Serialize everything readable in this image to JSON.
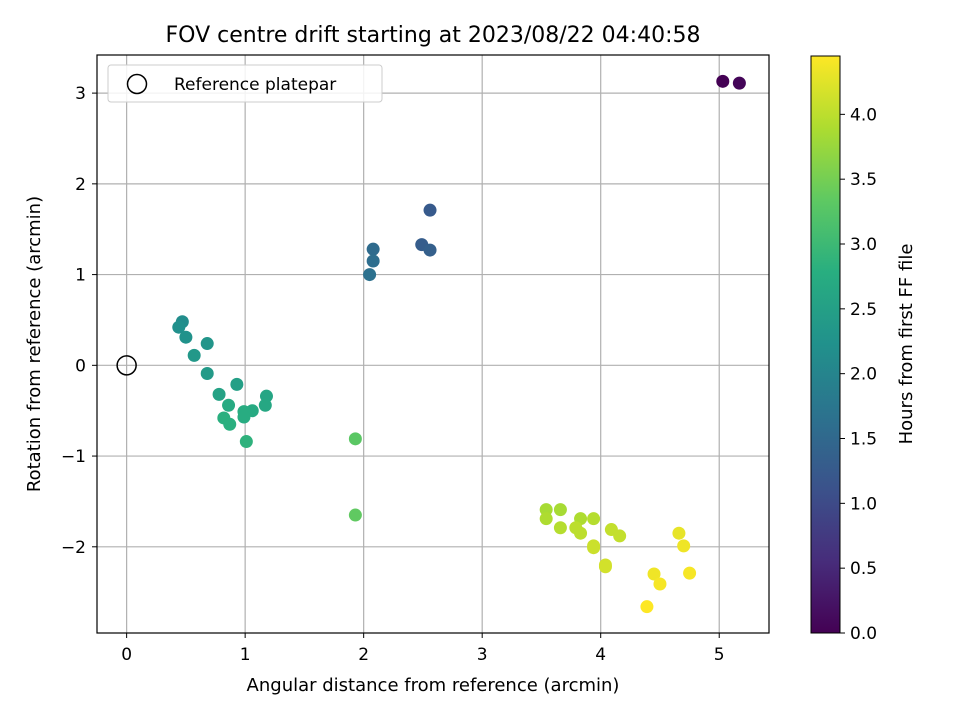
{
  "chart_data": {
    "type": "scatter",
    "title": "FOV centre drift starting at 2023/08/22 04:40:58",
    "xlabel": "Angular distance from reference (arcmin)",
    "ylabel": "Rotation from reference (arcmin)",
    "xlim": [
      -0.25,
      5.42
    ],
    "ylim": [
      -2.95,
      3.42
    ],
    "xticks": [
      0,
      1,
      2,
      3,
      4,
      5
    ],
    "xtick_labels": [
      "0",
      "1",
      "2",
      "3",
      "4",
      "5"
    ],
    "yticks": [
      -2,
      -1,
      0,
      1,
      2,
      3
    ],
    "ytick_labels": [
      "−2",
      "−1",
      "0",
      "1",
      "2",
      "3"
    ],
    "grid": true,
    "legend": {
      "placement": "top-left",
      "entries": [
        "Reference platepar"
      ]
    },
    "reference": {
      "x": 0,
      "y": 0,
      "label": "Reference platepar",
      "marker": "open-circle"
    },
    "colorbar": {
      "label": "Hours from first FF file",
      "min": 0.0,
      "max": 4.45,
      "ticks": [
        0.0,
        0.5,
        1.0,
        1.5,
        2.0,
        2.5,
        3.0,
        3.5,
        4.0
      ],
      "tick_labels": [
        "0.0",
        "0.5",
        "1.0",
        "1.5",
        "2.0",
        "2.5",
        "3.0",
        "3.5",
        "4.0"
      ],
      "colormap": "viridis"
    },
    "points": [
      {
        "x": 5.03,
        "y": 3.13,
        "c": 0.0
      },
      {
        "x": 5.17,
        "y": 3.11,
        "c": 0.05
      },
      {
        "x": 2.56,
        "y": 1.71,
        "c": 1.25
      },
      {
        "x": 2.49,
        "y": 1.33,
        "c": 1.3
      },
      {
        "x": 2.56,
        "y": 1.27,
        "c": 1.35
      },
      {
        "x": 2.08,
        "y": 1.28,
        "c": 1.55
      },
      {
        "x": 2.08,
        "y": 1.15,
        "c": 1.6
      },
      {
        "x": 2.05,
        "y": 1.0,
        "c": 1.65
      },
      {
        "x": 0.47,
        "y": 0.48,
        "c": 2.15
      },
      {
        "x": 0.44,
        "y": 0.42,
        "c": 2.2
      },
      {
        "x": 0.5,
        "y": 0.31,
        "c": 2.25
      },
      {
        "x": 0.68,
        "y": 0.24,
        "c": 2.3
      },
      {
        "x": 0.57,
        "y": 0.11,
        "c": 2.35
      },
      {
        "x": 0.68,
        "y": -0.09,
        "c": 2.4
      },
      {
        "x": 0.93,
        "y": -0.21,
        "c": 2.5
      },
      {
        "x": 0.78,
        "y": -0.32,
        "c": 2.55
      },
      {
        "x": 1.18,
        "y": -0.34,
        "c": 2.6
      },
      {
        "x": 1.17,
        "y": -0.44,
        "c": 2.65
      },
      {
        "x": 0.86,
        "y": -0.44,
        "c": 2.7
      },
      {
        "x": 1.06,
        "y": -0.5,
        "c": 2.7
      },
      {
        "x": 0.99,
        "y": -0.51,
        "c": 2.75
      },
      {
        "x": 0.99,
        "y": -0.57,
        "c": 2.75
      },
      {
        "x": 0.82,
        "y": -0.58,
        "c": 2.8
      },
      {
        "x": 0.87,
        "y": -0.65,
        "c": 2.8
      },
      {
        "x": 1.01,
        "y": -0.84,
        "c": 2.85
      },
      {
        "x": 1.93,
        "y": -0.81,
        "c": 3.3
      },
      {
        "x": 1.93,
        "y": -1.65,
        "c": 3.35
      },
      {
        "x": 3.54,
        "y": -1.59,
        "c": 3.85
      },
      {
        "x": 3.66,
        "y": -1.59,
        "c": 3.85
      },
      {
        "x": 3.54,
        "y": -1.69,
        "c": 3.9
      },
      {
        "x": 3.83,
        "y": -1.69,
        "c": 3.9
      },
      {
        "x": 3.94,
        "y": -1.69,
        "c": 3.95
      },
      {
        "x": 3.66,
        "y": -1.79,
        "c": 3.95
      },
      {
        "x": 3.79,
        "y": -1.79,
        "c": 4.0
      },
      {
        "x": 3.83,
        "y": -1.85,
        "c": 4.0
      },
      {
        "x": 4.09,
        "y": -1.81,
        "c": 4.05
      },
      {
        "x": 4.16,
        "y": -1.88,
        "c": 4.05
      },
      {
        "x": 3.94,
        "y": -1.99,
        "c": 4.1
      },
      {
        "x": 3.94,
        "y": -2.01,
        "c": 4.1
      },
      {
        "x": 4.04,
        "y": -2.2,
        "c": 4.15
      },
      {
        "x": 4.04,
        "y": -2.22,
        "c": 4.15
      },
      {
        "x": 4.66,
        "y": -1.85,
        "c": 4.3
      },
      {
        "x": 4.7,
        "y": -1.99,
        "c": 4.35
      },
      {
        "x": 4.45,
        "y": -2.3,
        "c": 4.35
      },
      {
        "x": 4.75,
        "y": -2.29,
        "c": 4.4
      },
      {
        "x": 4.5,
        "y": -2.41,
        "c": 4.4
      },
      {
        "x": 4.39,
        "y": -2.66,
        "c": 4.45
      }
    ]
  }
}
